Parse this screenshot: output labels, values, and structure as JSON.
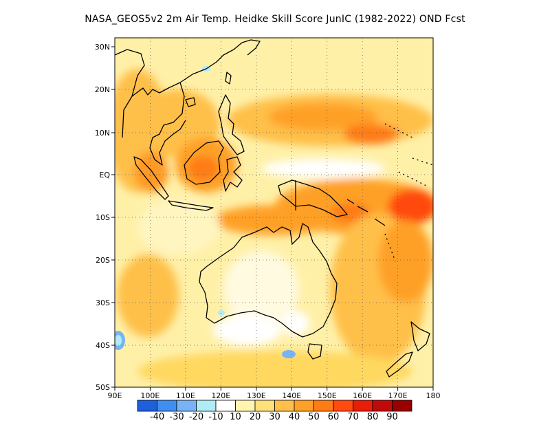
{
  "title": "NASA_GEOS5v2  2m Air Temp. Heidke Skill Score JunIC (1982-2022) OND Fcst",
  "map": {
    "lon_range": [
      90,
      180
    ],
    "lat_range": [
      -50,
      30
    ],
    "lon_ticks": [
      "90E",
      "100E",
      "110E",
      "120E",
      "130E",
      "140E",
      "150E",
      "160E",
      "170E",
      "180"
    ],
    "lat_ticks": [
      "30N",
      "20N",
      "10N",
      "EQ",
      "10S",
      "20S",
      "30S",
      "40S",
      "50S"
    ],
    "grid": "dotted"
  },
  "colorbar": {
    "colors": [
      "#1f5fdc",
      "#3f8ef0",
      "#78b4f5",
      "#b0ecf5",
      "#ffffff",
      "#fff5b0",
      "#ffe07a",
      "#ffc04a",
      "#ffa028",
      "#ff7c14",
      "#ff4a10",
      "#e61e0a",
      "#c00a0a",
      "#9a0000"
    ],
    "labels": [
      "-40",
      "-30",
      "-20",
      "-10",
      "10",
      "20",
      "30",
      "40",
      "50",
      "60",
      "70",
      "80",
      "90"
    ]
  },
  "regions": [
    {
      "name": "central-pacific-hotspot",
      "level": 70
    },
    {
      "name": "png-solomon-hotspot",
      "level": 70
    },
    {
      "name": "philippine-sea-band",
      "level": 60
    },
    {
      "name": "borneo-hotspot",
      "level": 60
    },
    {
      "name": "equatorial-white-gap",
      "level": 0
    },
    {
      "name": "australia-interior",
      "level": 20
    },
    {
      "name": "tasman-sea",
      "level": 40
    },
    {
      "name": "southern-indian-ocean-blue",
      "level": -20
    },
    {
      "name": "south-of-australia-blue",
      "level": -30
    }
  ]
}
